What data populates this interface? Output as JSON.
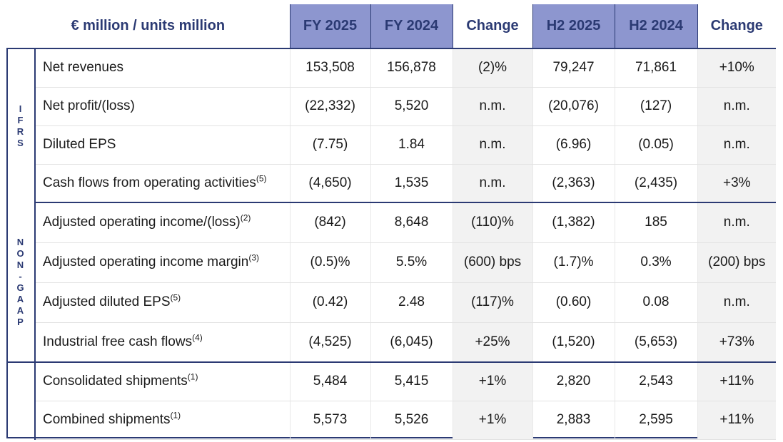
{
  "header": {
    "corner": "€ million / units million",
    "columns": [
      "FY 2025",
      "FY 2024",
      "Change",
      "H2 2025",
      "H2 2024",
      "Change"
    ]
  },
  "groups": {
    "ifrs": [
      "I",
      "F",
      "R",
      "S"
    ],
    "non_gaap": [
      "N",
      "O",
      "N",
      "-",
      "G",
      "A",
      "A",
      "P"
    ]
  },
  "rows": [
    {
      "label": "Net revenues",
      "note": "",
      "values": [
        "153,508",
        "156,878",
        "(2)%",
        "79,247",
        "71,861",
        "+10%"
      ]
    },
    {
      "label": "Net profit/(loss)",
      "note": "",
      "values": [
        "(22,332)",
        "5,520",
        "n.m.",
        "(20,076)",
        "(127)",
        "n.m."
      ]
    },
    {
      "label": "Diluted EPS",
      "note": "",
      "values": [
        "(7.75)",
        "1.84",
        "n.m.",
        "(6.96)",
        "(0.05)",
        "n.m."
      ]
    },
    {
      "label": "Cash flows from operating activities",
      "note": "(5)",
      "values": [
        "(4,650)",
        "1,535",
        "n.m.",
        "(2,363)",
        "(2,435)",
        "+3%"
      ]
    },
    {
      "label": "Adjusted operating income/(loss)",
      "note": "(2)",
      "values": [
        "(842)",
        "8,648",
        "(110)%",
        "(1,382)",
        "185",
        "n.m."
      ]
    },
    {
      "label": "Adjusted operating income margin",
      "note": "(3)",
      "values": [
        "(0.5)%",
        "5.5%",
        "(600) bps",
        "(1.7)%",
        "0.3%",
        "(200) bps"
      ]
    },
    {
      "label": "Adjusted diluted EPS",
      "note": "(5)",
      "values": [
        "(0.42)",
        "2.48",
        "(117)%",
        "(0.60)",
        "0.08",
        "n.m."
      ]
    },
    {
      "label": "Industrial free cash flows",
      "note": "(4)",
      "values": [
        "(4,525)",
        "(6,045)",
        "+25%",
        "(1,520)",
        "(5,653)",
        "+73%"
      ]
    },
    {
      "label": "Consolidated shipments",
      "note": "(1)",
      "values": [
        "5,484",
        "5,415",
        "+1%",
        "2,820",
        "2,543",
        "+11%"
      ]
    },
    {
      "label": "Combined shipments",
      "note": "(1)",
      "values": [
        "5,573",
        "5,526",
        "+1%",
        "2,883",
        "2,595",
        "+11%"
      ]
    }
  ],
  "colors": {
    "accent": "#2b3a73",
    "header_shade": "#8d96cf",
    "change_shade": "#f2f2f2"
  }
}
